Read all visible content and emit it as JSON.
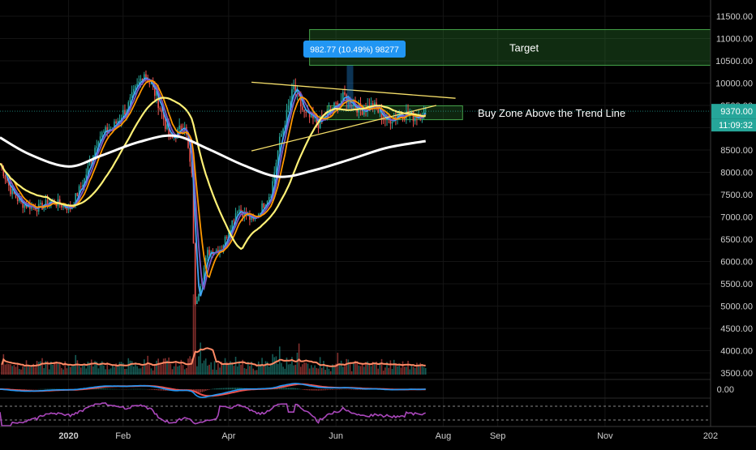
{
  "chart_data": {
    "type": "line",
    "title": "",
    "xlabel": "",
    "ylabel": "",
    "y_axis_ticks": [
      "11500.00",
      "11000.00",
      "10500.00",
      "10000.00",
      "9500.00",
      "9000.00",
      "8500.00",
      "8000.00",
      "7500.00",
      "7000.00",
      "6500.00",
      "6000.00",
      "5500.00",
      "5000.00",
      "4500.00",
      "4000.00",
      "3500.00"
    ],
    "x_axis_ticks": [
      "2020",
      "Feb",
      "Apr",
      "Jun",
      "Aug",
      "Sep",
      "Nov",
      "202"
    ],
    "ylim": [
      3300,
      11750
    ],
    "xlim_dates": [
      "2019-11-23",
      "2020-12-31"
    ],
    "grid": true,
    "current_price": 9370,
    "price_tag": "9370.00",
    "countdown_tag": "11:09:32",
    "osc_zero_label": "0.00",
    "measure_label": "982.77 (10.49%) 98277",
    "zones": [
      {
        "name": "Target",
        "label": "Target",
        "y_from": 10400,
        "y_to": 11200,
        "date_from": "2020-05-17",
        "date_to": "2020-12-31",
        "color": "#2e7d32"
      },
      {
        "name": "Buy Zone",
        "label": "Buy Zone Above the Trend Line",
        "y_from": 9180,
        "y_to": 9490,
        "date_from": "2020-05-27",
        "date_to": "2020-08-12",
        "color": "#2e7d32"
      }
    ],
    "trend_lines": [
      {
        "name": "upper",
        "color": "#f7e06a",
        "points": [
          [
            "2020-04-14",
            10020
          ],
          [
            "2020-08-08",
            9660
          ]
        ]
      },
      {
        "name": "lower",
        "color": "#f7e06a",
        "points": [
          [
            "2020-04-14",
            8480
          ],
          [
            "2020-07-28",
            9500
          ]
        ]
      }
    ],
    "price": {
      "anchors": [
        [
          "2019-11-23",
          8200
        ],
        [
          "2019-11-29",
          7600
        ],
        [
          "2019-12-05",
          7300
        ],
        [
          "2019-12-15",
          7200
        ],
        [
          "2019-12-22",
          7350
        ],
        [
          "2020-01-02",
          7200
        ],
        [
          "2020-01-10",
          7850
        ],
        [
          "2020-01-18",
          8800
        ],
        [
          "2020-01-26",
          9000
        ],
        [
          "2020-02-04",
          9500
        ],
        [
          "2020-02-13",
          10250
        ],
        [
          "2020-02-20",
          9700
        ],
        [
          "2020-02-28",
          8700
        ],
        [
          "2020-03-07",
          9100
        ],
        [
          "2020-03-11",
          7900
        ],
        [
          "2020-03-13",
          5000
        ],
        [
          "2020-03-20",
          6200
        ],
        [
          "2020-03-28",
          6300
        ],
        [
          "2020-04-06",
          7200
        ],
        [
          "2020-04-15",
          6900
        ],
        [
          "2020-04-25",
          7550
        ],
        [
          "2020-04-30",
          8700
        ],
        [
          "2020-05-08",
          9900
        ],
        [
          "2020-05-14",
          9300
        ],
        [
          "2020-05-22",
          9100
        ],
        [
          "2020-06-01",
          9500
        ],
        [
          "2020-06-06",
          9700
        ],
        [
          "2020-06-15",
          9400
        ],
        [
          "2020-06-22",
          9500
        ],
        [
          "2020-06-30",
          9150
        ],
        [
          "2020-07-08",
          9350
        ],
        [
          "2020-07-15",
          9250
        ],
        [
          "2020-07-22",
          9370
        ]
      ]
    },
    "moving_averages": [
      {
        "name": "MA blue",
        "color": "#42a5f5",
        "window": 4
      },
      {
        "name": "MA purple",
        "color": "#7e57c2",
        "window": 6
      },
      {
        "name": "MA orange",
        "color": "#ff9800",
        "window": 9
      },
      {
        "name": "MA yellow",
        "color": "#fff176",
        "window": 28
      },
      {
        "name": "MA white",
        "color": "#ffffff",
        "points": [
          [
            "2019-11-23",
            8780
          ],
          [
            "2019-12-10",
            8400
          ],
          [
            "2020-01-01",
            8130
          ],
          [
            "2020-01-20",
            8380
          ],
          [
            "2020-02-10",
            8680
          ],
          [
            "2020-03-01",
            8820
          ],
          [
            "2020-03-20",
            8530
          ],
          [
            "2020-04-10",
            8150
          ],
          [
            "2020-04-30",
            7900
          ],
          [
            "2020-05-20",
            8050
          ],
          [
            "2020-06-10",
            8300
          ],
          [
            "2020-06-30",
            8550
          ],
          [
            "2020-07-22",
            8700
          ]
        ]
      }
    ],
    "volume": {
      "ma_color": "#ff8a65",
      "base": 3540,
      "spikes": [
        [
          "2020-03-12",
          4950
        ],
        [
          "2020-03-13",
          4700
        ],
        [
          "2020-03-16",
          4450
        ],
        [
          "2020-04-30",
          4250
        ],
        [
          "2020-05-10",
          4300
        ],
        [
          "2020-05-11",
          4600
        ],
        [
          "2020-06-02",
          4200
        ],
        [
          "2020-01-14",
          4050
        ],
        [
          "2020-02-15",
          4100
        ],
        [
          "2019-11-25",
          4050
        ]
      ]
    },
    "colors": {
      "up": "#26a69a",
      "down": "#ef5350",
      "zone": "#2e7d32",
      "price_tag": "#26a69a",
      "measure_bg": "#2196f3",
      "oscillator": "#ab47bc",
      "macd_orange": "#ff9800",
      "macd_red": "#ef5350",
      "macd_blue": "#2196f3"
    }
  }
}
